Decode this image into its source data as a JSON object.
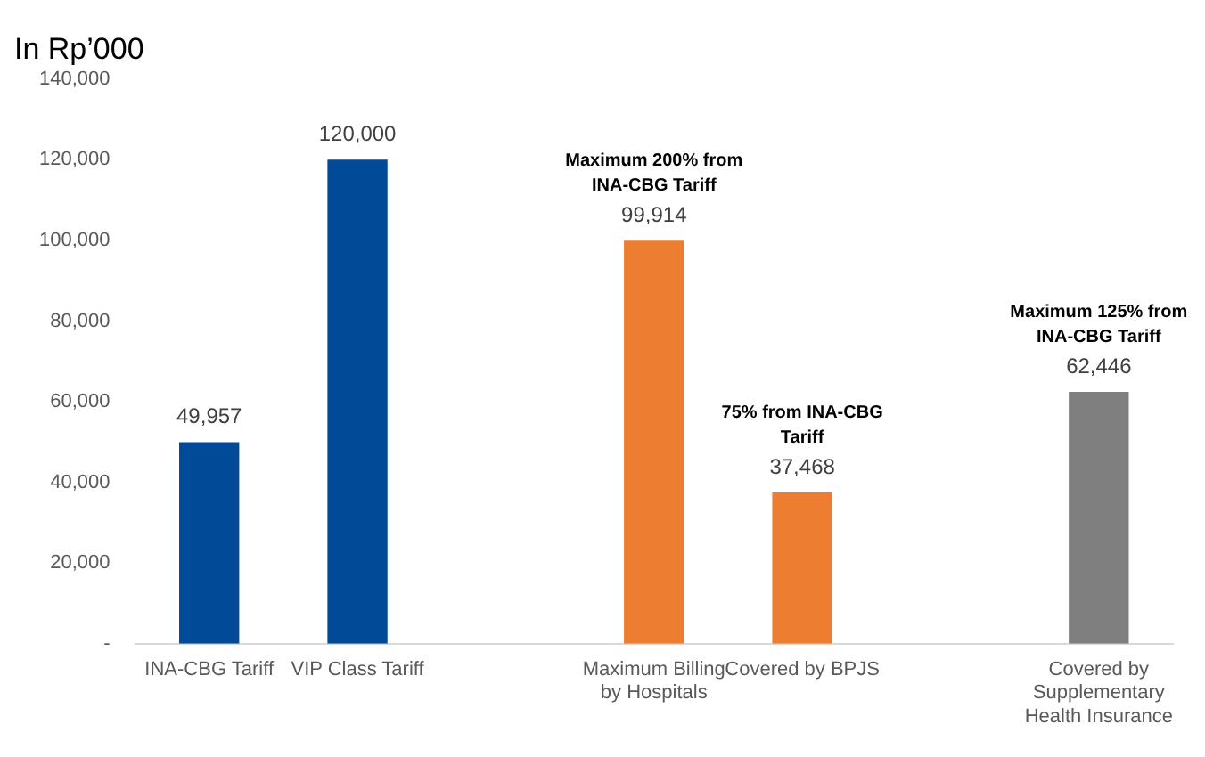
{
  "chart_data": {
    "type": "bar",
    "title": "In Rp’000",
    "categories": [
      "INA-CBG Tariff",
      "VIP Class Tariff",
      null,
      "Maximum Billing by Hospitals",
      "Covered by BPJS",
      null,
      "Covered by Supplementary Health Insurance"
    ],
    "values": [
      49957,
      120000,
      null,
      99914,
      37468,
      null,
      62446
    ],
    "colors": [
      "#004a97",
      "#004a97",
      null,
      "#ed7d31",
      "#ed7d31",
      null,
      "#7f7f7f"
    ],
    "value_labels": [
      "49,957",
      "120,000",
      null,
      "99,914",
      "37,468",
      null,
      "62,446"
    ],
    "ylim": [
      0,
      140000
    ],
    "yticks": [
      {
        "value": 0,
        "label": "-"
      },
      {
        "value": 20000,
        "label": "20,000"
      },
      {
        "value": 40000,
        "label": "40,000"
      },
      {
        "value": 60000,
        "label": "60,000"
      },
      {
        "value": 80000,
        "label": "80,000"
      },
      {
        "value": 100000,
        "label": "100,000"
      },
      {
        "value": 120000,
        "label": "120,000"
      },
      {
        "value": 140000,
        "label": "140,000"
      }
    ],
    "grid": false,
    "legend": false,
    "annotations": [
      {
        "text": "Maximum 200% from INA-CBG Tariff",
        "x": "Maximum Billing by Hospitals",
        "y": 99914
      },
      {
        "text": "75% from INA-CBG Tariff",
        "x": "Covered by BPJS",
        "y": 37468
      },
      {
        "text": "Maximum 125% from INA-CBG Tariff",
        "x": "Covered by Supplementary Health Insurance",
        "y": 62446
      }
    ]
  }
}
